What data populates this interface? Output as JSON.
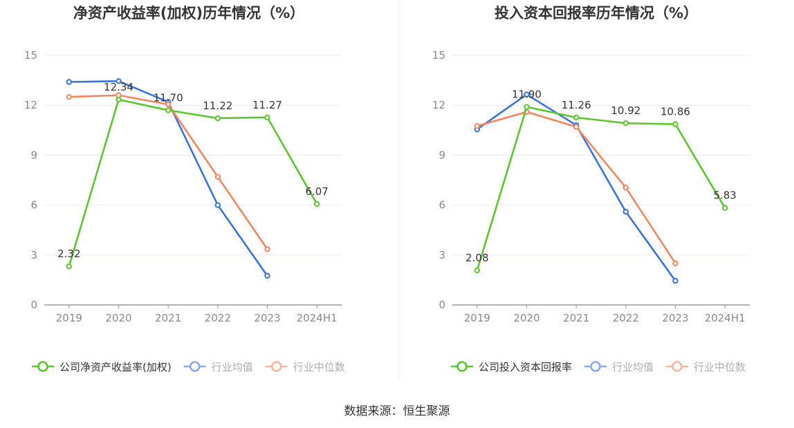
{
  "source": "数据来源：恒生聚源",
  "colors": {
    "company": "#5cc52f",
    "industry_avg": "#3b73de",
    "industry_median": "#f2875f",
    "grid": "#e6e9f0",
    "axis": "#999999",
    "tick_text": "#8a8a8a",
    "title": "#333333"
  },
  "chart_data": [
    {
      "type": "line",
      "title": "净资产收益率(加权)历年情况（%）",
      "categories": [
        "2019",
        "2020",
        "2021",
        "2022",
        "2023",
        "2024H1"
      ],
      "y_ticks": [
        "0",
        "3",
        "6",
        "9",
        "12",
        "15"
      ],
      "ylim": [
        0,
        15
      ],
      "grid": true,
      "legend_position": "bottom",
      "series": [
        {
          "name": "公司净资产收益率(加权)",
          "key": "company",
          "values": [
            2.32,
            12.34,
            11.7,
            11.22,
            11.27,
            6.07
          ],
          "labels": [
            "2.32",
            "12.34",
            "11.70",
            "11.22",
            "11.27",
            "6.07"
          ]
        },
        {
          "name": "行业均值",
          "key": "industry_avg",
          "values": [
            13.4,
            13.45,
            12.2,
            6.0,
            1.75,
            null
          ]
        },
        {
          "name": "行业中位数",
          "key": "industry_median",
          "values": [
            12.5,
            12.6,
            12.05,
            7.7,
            3.35,
            null
          ]
        }
      ]
    },
    {
      "type": "line",
      "title": "投入资本回报率历年情况（%）",
      "categories": [
        "2019",
        "2020",
        "2021",
        "2022",
        "2023",
        "2024H1"
      ],
      "y_ticks": [
        "0",
        "3",
        "6",
        "9",
        "12",
        "15"
      ],
      "ylim": [
        0,
        15
      ],
      "grid": true,
      "legend_position": "bottom",
      "series": [
        {
          "name": "公司投入资本回报率",
          "key": "company",
          "values": [
            2.08,
            11.9,
            11.26,
            10.92,
            10.86,
            5.83
          ],
          "labels": [
            "2.08",
            "11.90",
            "11.26",
            "10.92",
            "10.86",
            "5.83"
          ]
        },
        {
          "name": "行业均值",
          "key": "industry_avg",
          "values": [
            10.55,
            12.65,
            10.8,
            5.6,
            1.45,
            null
          ]
        },
        {
          "name": "行业中位数",
          "key": "industry_median",
          "values": [
            10.75,
            11.6,
            10.7,
            7.05,
            2.5,
            null
          ]
        }
      ]
    }
  ]
}
